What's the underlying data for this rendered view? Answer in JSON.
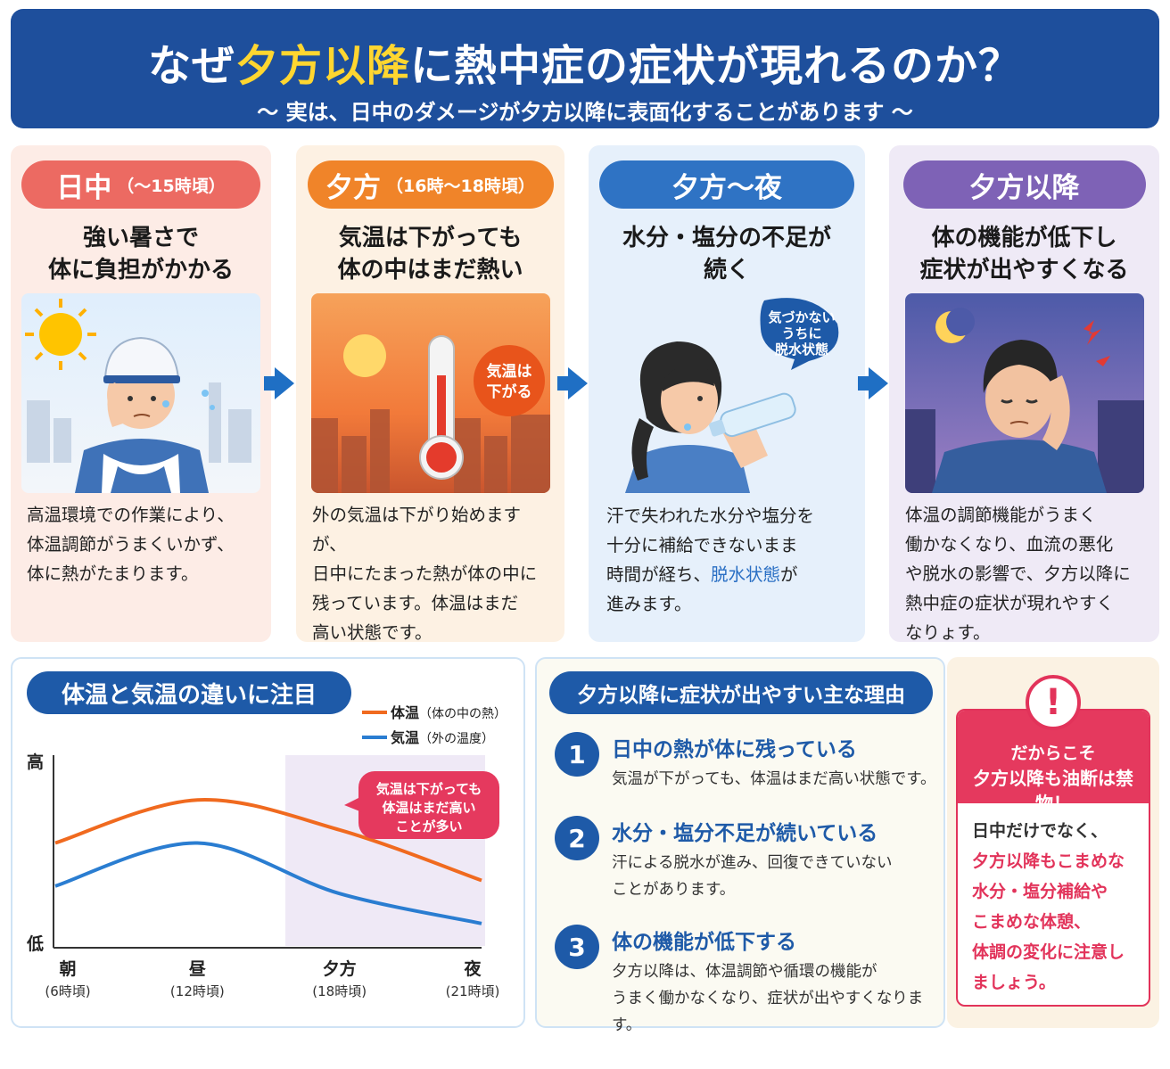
{
  "header": {
    "title_pre": "なぜ",
    "title_hl": "夕方以降",
    "title_post": "に熱中症の症状が現れるのか？",
    "subtitle": "～ 実は、日中のダメージが夕方以降に表面化することがあります ～"
  },
  "stages": [
    {
      "label": "日中",
      "time": "（～15時頃）",
      "heading": [
        "強い暑さで",
        "体に負担がかかる"
      ],
      "body": [
        "高温環境での作業により、",
        "体温調節がうまくいかず、",
        "体に熱がたまります。"
      ],
      "color": "#ec6a62"
    },
    {
      "label": "夕方",
      "time": "（16時～18時頃）",
      "heading": [
        "気温は下がっても",
        "体の中はまだ熱い"
      ],
      "bubble": [
        "気温は",
        "下がる"
      ],
      "body": [
        "外の気温は下がり始めますが、",
        "日中にたまった熱が体の中に",
        "残っています。体温はまだ",
        "高い状態です。"
      ],
      "color": "#f08429"
    },
    {
      "label": "夕方～夜",
      "heading": [
        "水分・塩分の不足が",
        "続く"
      ],
      "bubble": [
        "気づかない",
        "うちに",
        "脱水状態"
      ],
      "body": [
        "汗で失われた水分や塩分を",
        "十分に補給できないまま",
        "時間が経ち、",
        "脱水状態",
        "が",
        "進みます。"
      ],
      "color": "#2f73c4"
    },
    {
      "label": "夕方以降",
      "heading": [
        "体の機能が低下し",
        "症状が出やすくなる"
      ],
      "body": [
        "体温の調節機能がうまく",
        "働かなくなり、血流の悪化",
        "や脱水の影響で、夕方以降に",
        "熱中症の症状が現れやすく",
        "なりょす。"
      ],
      "color": "#7e62b6"
    }
  ],
  "chart": {
    "title": "体温と気温の違いに注目",
    "legend": [
      {
        "name": "体温",
        "note": "（体の中の熱）",
        "color": "#f06a1f"
      },
      {
        "name": "気温",
        "note": "（外の温度）",
        "color": "#2a7dd1"
      }
    ],
    "y_high": "高",
    "y_low": "低",
    "callout": [
      "気温は下がっても",
      "体温はまだ高い",
      "ことが多い"
    ],
    "x_labels": [
      {
        "name": "朝",
        "sub": "(6時頃)"
      },
      {
        "name": "昼",
        "sub": "(12時頃)"
      },
      {
        "name": "夕方",
        "sub": "(18時頃)"
      },
      {
        "name": "夜",
        "sub": "(21時頃)"
      }
    ]
  },
  "chart_data": {
    "type": "line",
    "title": "体温と気温の違いに注目",
    "x": [
      "朝",
      "昼",
      "夕方",
      "夜"
    ],
    "series": [
      {
        "name": "体温",
        "values": [
          0.55,
          0.78,
          0.62,
          0.35
        ]
      },
      {
        "name": "気温",
        "values": [
          0.32,
          0.55,
          0.28,
          0.12
        ]
      }
    ],
    "ylim": [
      0,
      1
    ],
    "shaded_region": "夕方〜夜",
    "legend": "top-right",
    "grid": false
  },
  "reasons": {
    "title": "夕方以降に症状が出やすい主な理由",
    "items": [
      {
        "num": "1",
        "title": "日中の熱が体に残っている",
        "text": [
          "気温が下がっても、体温はまだ高い状態です。"
        ]
      },
      {
        "num": "2",
        "title": "水分・塩分不足が続いている",
        "text": [
          "汗による脱水が進み、回復できていない",
          "ことがあります。"
        ]
      },
      {
        "num": "3",
        "title": "体の機能が低下する",
        "text": [
          "夕方以降は、体温調節や循環の機能が",
          "うまく働かなくなり、症状が出やすくなります。"
        ]
      }
    ]
  },
  "warning": {
    "mark": "!",
    "top": [
      "だからこそ",
      "夕方以降も油断は禁物！"
    ],
    "lines": [
      "日中だけでなく、",
      "夕方以降もこまめな",
      "水分・塩分補給や",
      "こまめな体憩、",
      "体調の変化に注意し",
      "ましょう。"
    ]
  }
}
